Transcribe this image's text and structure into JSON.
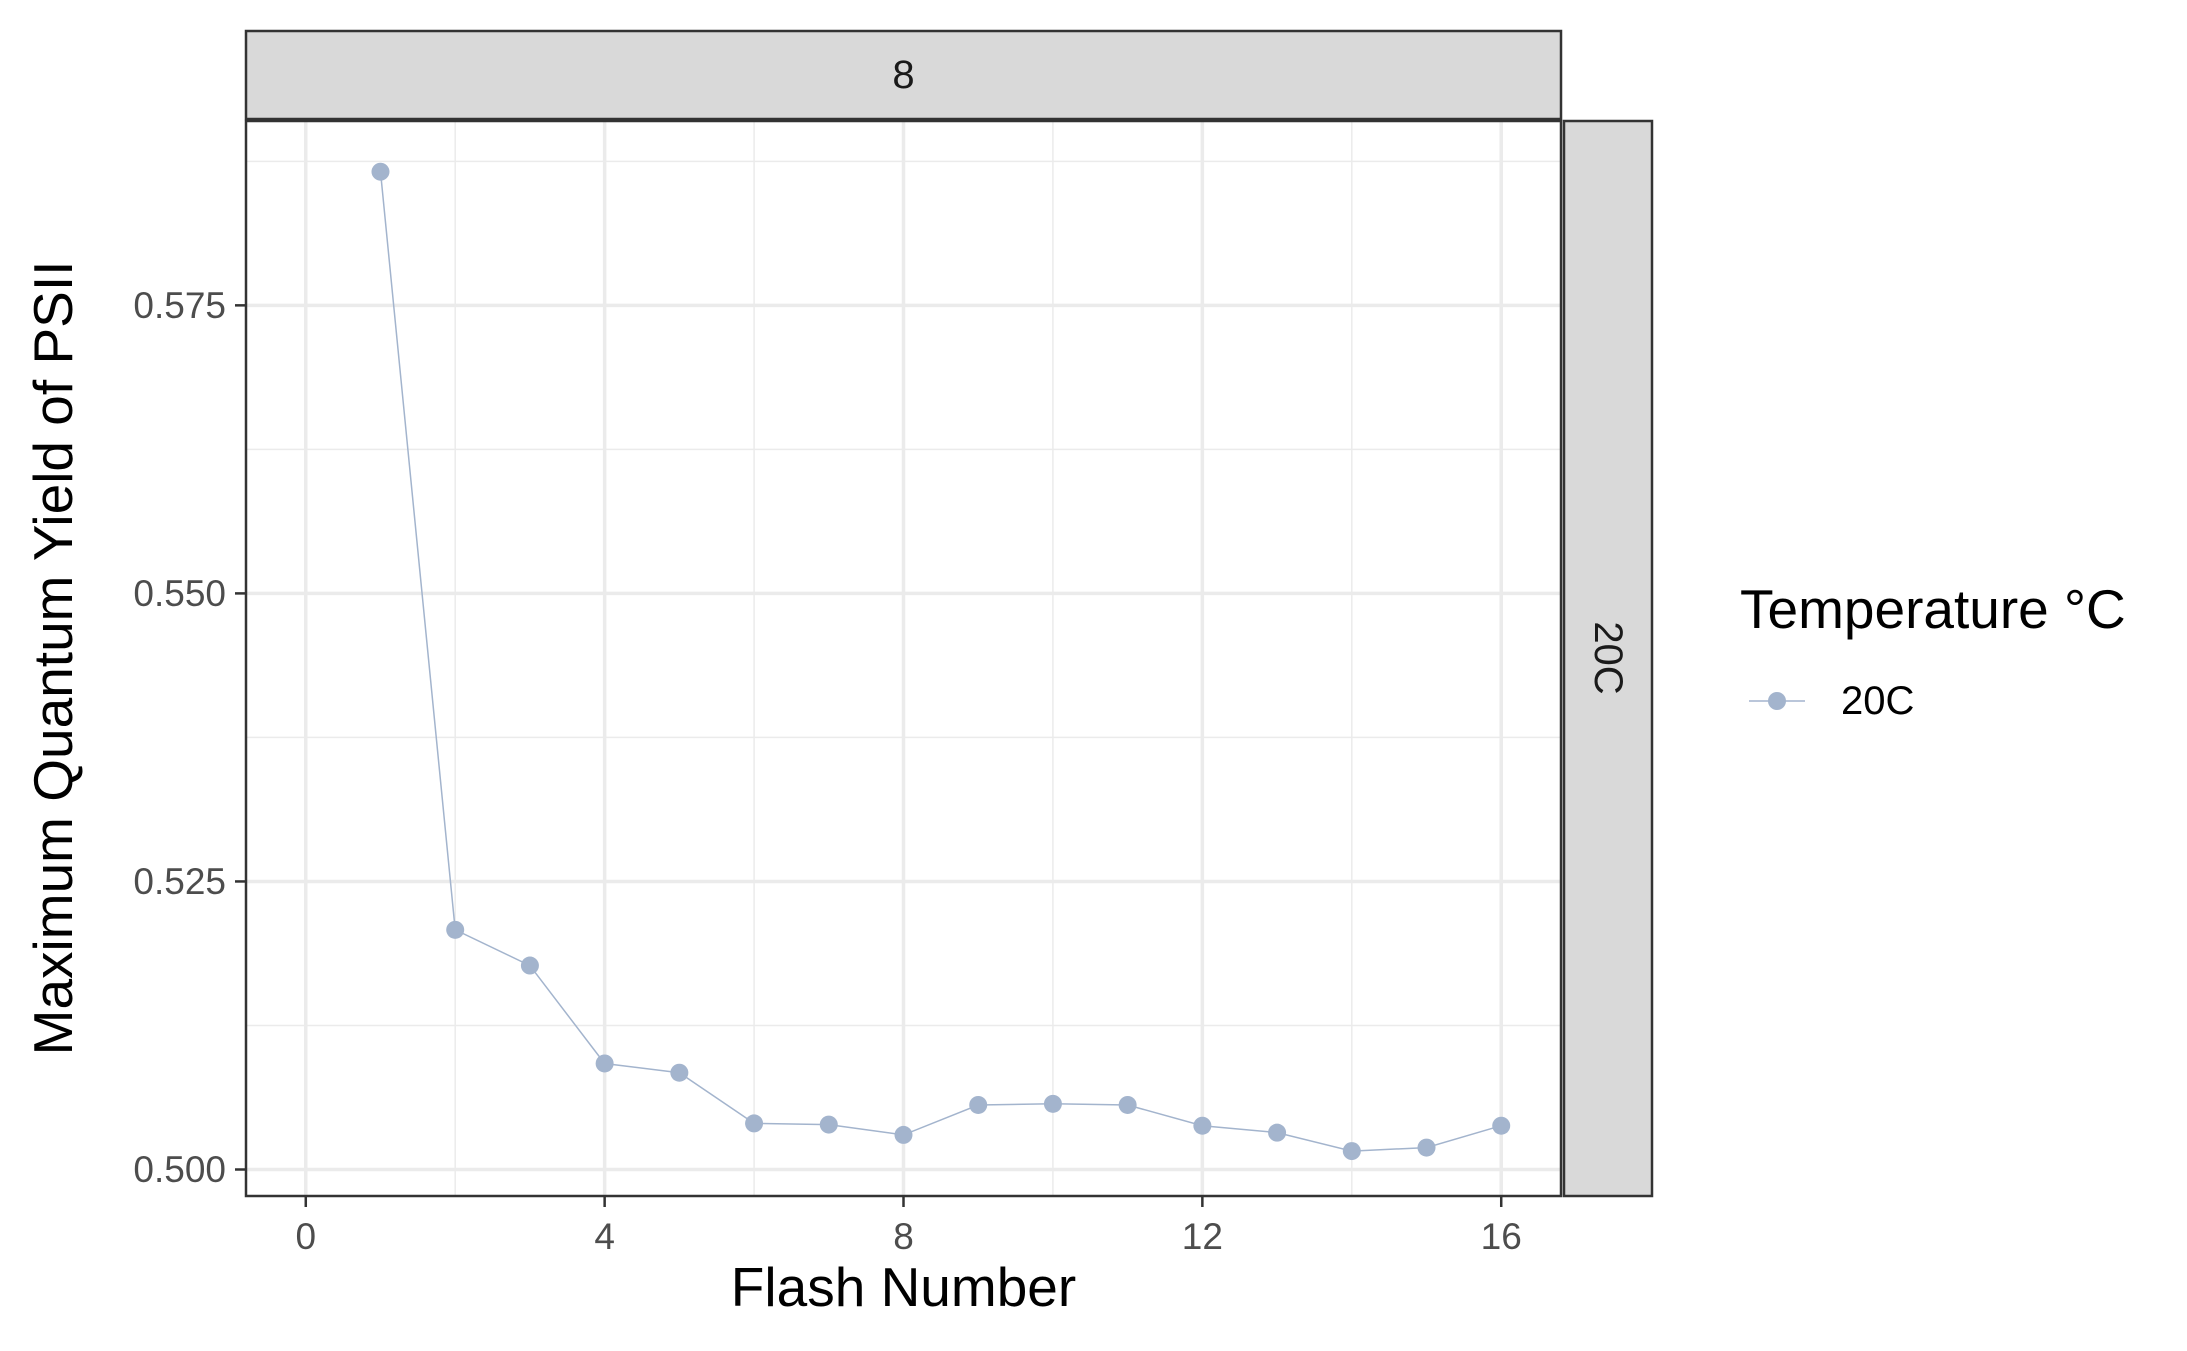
{
  "chart_data": {
    "type": "line",
    "facet": {
      "top_strip": "8",
      "right_strip": "20C"
    },
    "xlabel": "Flash Number",
    "ylabel": "Maximum Quantum Yield of PSII",
    "xlim": [
      -0.8,
      16.8
    ],
    "ylim": [
      0.4977,
      0.591
    ],
    "x_ticks": [
      0,
      4,
      8,
      12,
      16
    ],
    "x_tick_labels": [
      "0",
      "4",
      "8",
      "12",
      "16"
    ],
    "y_ticks": [
      0.5,
      0.525,
      0.55,
      0.575
    ],
    "y_tick_labels": [
      "0.500",
      "0.525",
      "0.550",
      "0.575"
    ],
    "grid": true,
    "legend": {
      "title": "Temperature °C",
      "position": "right",
      "entries": [
        {
          "label": "20C",
          "color": "#a3b4cd"
        }
      ]
    },
    "series": [
      {
        "name": "20C",
        "color": "#a3b4cd",
        "x": [
          1,
          2,
          3,
          4,
          5,
          6,
          7,
          8,
          9,
          10,
          11,
          12,
          13,
          14,
          15,
          16
        ],
        "y": [
          0.5866,
          0.5208,
          0.5177,
          0.5092,
          0.5084,
          0.504,
          0.5039,
          0.503,
          0.5056,
          0.5057,
          0.5056,
          0.5038,
          0.5032,
          0.5016,
          0.5019,
          0.5038
        ]
      }
    ]
  }
}
